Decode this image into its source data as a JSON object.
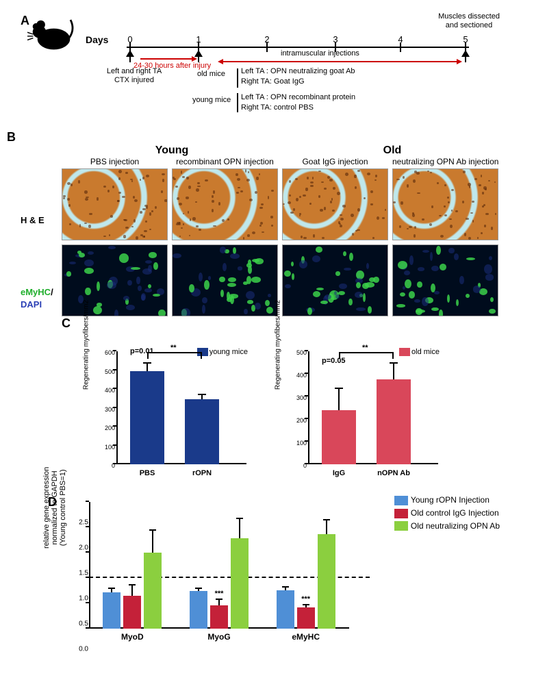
{
  "panelA": {
    "label": "A",
    "days_label": "Days",
    "ticks": [
      "0",
      "1",
      "2",
      "3",
      "4",
      "5"
    ],
    "top_right": "Muscles dissected\nand sectioned",
    "ctx_caption": "Left and right TA\nCTX injured",
    "after_injury": "24-30 hours after injury",
    "old_mice": "old mice",
    "young_mice": "young mice",
    "intramuscular": "intramuscular injections",
    "old_left": "Left TA : OPN neutralizing goat Ab",
    "old_right": "Right TA: Goat IgG",
    "young_left": "Left TA : OPN recombinant protein",
    "young_right": "Right TA: control PBS"
  },
  "panelB": {
    "label": "B",
    "group_young": "Young",
    "group_old": "Old",
    "conditions": [
      "PBS injection",
      "recombinant OPN injection",
      "Goat IgG injection",
      "neutralizing OPN Ab injection"
    ],
    "row1": "H & E",
    "row2_a": "eMyHC",
    "row2_b": "/",
    "row2_c": "DAPI",
    "colors": {
      "he_bg": "#c97a2e",
      "he_light": "#bfe8ec",
      "if_bg": "#000c1d",
      "if_blue": "#1a2d7a",
      "if_green": "#3bd14a",
      "emyhc": "#1fae2c",
      "dapi": "#2a3fb5"
    }
  },
  "panelC": {
    "label": "C",
    "ylabel": "Regenerating myofibers/mm2",
    "young": {
      "legend": "young mice",
      "color": "#1a3a8a",
      "ymax": 600,
      "ytick_step": 100,
      "p": "p=0.01",
      "stars": "**",
      "bars": [
        {
          "x": "PBS",
          "value": 495,
          "err": 45
        },
        {
          "x": "rOPN",
          "value": 345,
          "err": 25
        }
      ]
    },
    "old": {
      "legend": "old mice",
      "color": "#d9475a",
      "ymax": 500,
      "ytick_step": 100,
      "p": "p=0.05",
      "stars": "**",
      "bars": [
        {
          "x": "IgG",
          "value": 240,
          "err": 95
        },
        {
          "x": "nOPN Ab",
          "value": 375,
          "err": 75
        }
      ]
    }
  },
  "panelD": {
    "label": "D",
    "ylabel_line1": "relative gene expression",
    "ylabel_line2": "normalized to GAPDH",
    "ylabel_line3": "(Young control PBS=1)",
    "ymax": 2.5,
    "ytick_step": 0.5,
    "dashed_at": 1.0,
    "series": [
      {
        "name": "Young rOPN Injection",
        "color": "#4f8fd6"
      },
      {
        "name": "Old control IgG Injection",
        "color": "#c42139"
      },
      {
        "name": "Old neutralizing OPN Ab",
        "color": "#8bcf3f"
      }
    ],
    "groups": [
      {
        "label": "MyoD",
        "values": [
          0.72,
          0.65,
          1.5
        ],
        "errs": [
          0.08,
          0.22,
          0.44
        ],
        "sig": [
          null,
          null,
          null
        ]
      },
      {
        "label": "MyoG",
        "values": [
          0.74,
          0.46,
          1.78
        ],
        "errs": [
          0.06,
          0.12,
          0.4
        ],
        "sig": [
          null,
          "***",
          null
        ]
      },
      {
        "label": "eMyHC",
        "values": [
          0.76,
          0.42,
          1.87
        ],
        "errs": [
          0.06,
          0.05,
          0.28
        ],
        "sig": [
          null,
          "***",
          null
        ]
      }
    ]
  }
}
